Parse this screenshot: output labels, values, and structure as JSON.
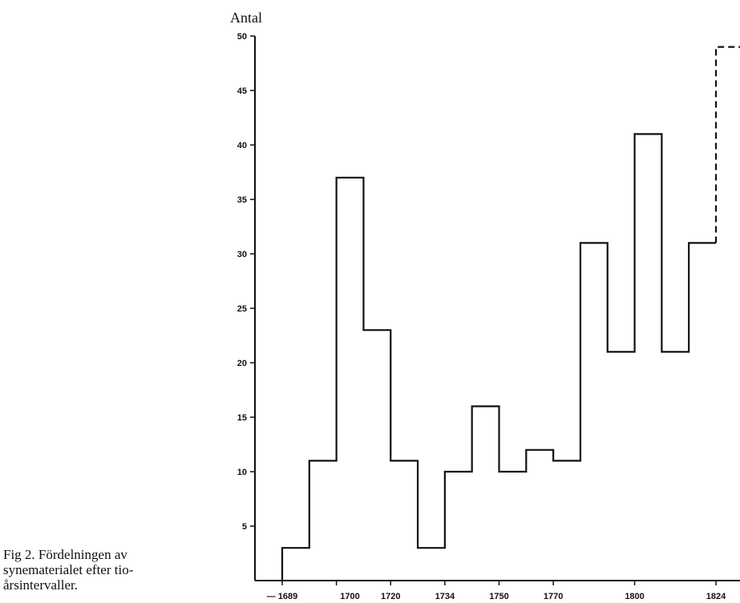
{
  "chart_data": {
    "type": "histogram",
    "title": "",
    "ylabel": "Antal",
    "xlabel": "",
    "ylim": [
      0,
      50
    ],
    "y_ticks": [
      5,
      10,
      15,
      20,
      25,
      30,
      35,
      40,
      45,
      50
    ],
    "x_tick_labels": [
      "— 1689",
      "1700",
      "1720",
      "1734",
      "1750",
      "1770",
      "1800",
      "1824"
    ],
    "bin_edges": [
      1689,
      1694,
      1700,
      1710,
      1720,
      1727,
      1734,
      1742,
      1750,
      1760,
      1770,
      1780,
      1790,
      1800,
      1810,
      1820,
      1824
    ],
    "values": [
      3,
      11,
      37,
      23,
      11,
      3,
      10,
      16,
      10,
      12,
      11,
      31,
      21,
      41,
      21,
      31
    ],
    "dashed_segment": {
      "from_year": 1824,
      "value": 49
    },
    "grid": false
  },
  "caption": "Fig 2. Fördelningen av synematerialet efter tio-årsintervaller."
}
